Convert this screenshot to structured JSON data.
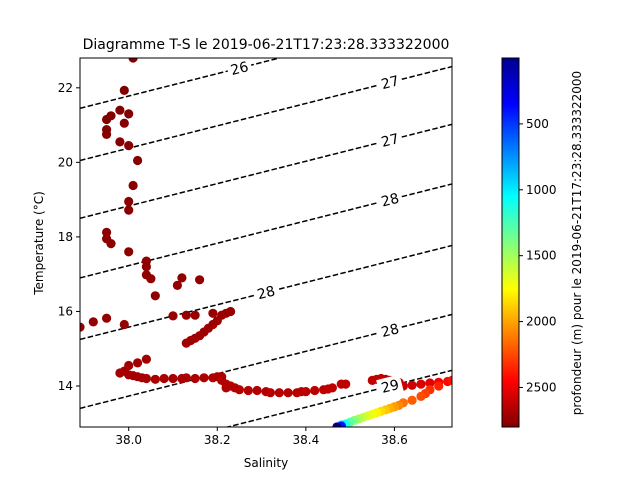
{
  "chart_data": {
    "type": "scatter",
    "title": "Diagramme T-S le 2019-06-21T17:23:28.333322000",
    "xlabel": "Salinity",
    "ylabel": "Temperature (°C)",
    "xlim": [
      37.89,
      38.73
    ],
    "ylim": [
      12.9,
      22.8
    ],
    "xticks": [
      38.0,
      38.2,
      38.4,
      38.6
    ],
    "xtick_labels": [
      "38.0",
      "38.2",
      "38.4",
      "38.6"
    ],
    "yticks": [
      14,
      16,
      18,
      20,
      22
    ],
    "ytick_labels": [
      "14",
      "16",
      "18",
      "20",
      "22"
    ],
    "grid": false,
    "colorbar": {
      "label": "profondeur (m) pour le 2019-06-21T17:23:28.333322000",
      "min": 0,
      "max": 2800,
      "reversed": true,
      "colormap": "jet",
      "ticks": [
        500,
        1000,
        1500,
        2000,
        2500
      ],
      "tick_labels": [
        "500",
        "1000",
        "1500",
        "2000",
        "2500"
      ]
    },
    "density_contours": {
      "style": "dashed",
      "color": "#000000",
      "slope_degC_per_psu": 3.0,
      "lines": [
        {
          "t_at_xmin": 21.45,
          "label": "26",
          "label_x": 38.25
        },
        {
          "t_at_xmin": 20.05,
          "label": "27",
          "label_x": 38.59
        },
        {
          "t_at_xmin": 18.5,
          "label": "27",
          "label_x": 38.59
        },
        {
          "t_at_xmin": 16.9,
          "label": "28",
          "label_x": 38.59
        },
        {
          "t_at_xmin": 15.25,
          "label": "28",
          "label_x": 38.31
        },
        {
          "t_at_xmin": 13.4,
          "label": "28",
          "label_x": 38.59
        },
        {
          "t_at_xmin": 11.9,
          "label": "29",
          "label_x": 38.59
        }
      ]
    },
    "series": [
      {
        "points": [
          [
            38.01,
            22.8,
            0
          ],
          [
            37.99,
            21.93,
            3
          ],
          [
            37.95,
            21.15,
            6
          ],
          [
            37.98,
            21.4,
            8
          ],
          [
            37.96,
            21.25,
            10
          ],
          [
            38.0,
            21.3,
            12
          ],
          [
            37.99,
            21.05,
            14
          ],
          [
            37.95,
            20.88,
            16
          ],
          [
            37.95,
            20.75,
            18
          ],
          [
            37.98,
            20.55,
            20
          ],
          [
            38.0,
            20.45,
            22
          ],
          [
            38.02,
            20.05,
            24
          ],
          [
            38.01,
            19.38,
            26
          ],
          [
            38.0,
            18.95,
            28
          ],
          [
            38.0,
            18.72,
            30
          ],
          [
            37.95,
            18.12,
            32
          ],
          [
            37.95,
            17.95,
            34
          ],
          [
            37.96,
            17.82,
            36
          ],
          [
            38.0,
            17.6,
            38
          ],
          [
            38.04,
            17.35,
            40
          ],
          [
            38.04,
            17.2,
            42
          ],
          [
            38.04,
            16.98,
            44
          ],
          [
            38.05,
            16.88,
            46
          ],
          [
            38.06,
            16.42,
            48
          ],
          [
            38.12,
            16.9,
            50
          ],
          [
            38.16,
            16.85,
            52
          ],
          [
            38.11,
            16.7,
            54
          ],
          [
            37.89,
            15.58,
            56
          ],
          [
            37.92,
            15.72,
            58
          ],
          [
            37.95,
            15.82,
            60
          ],
          [
            37.99,
            15.65,
            62
          ],
          [
            38.1,
            15.88,
            64
          ],
          [
            38.13,
            15.9,
            66
          ],
          [
            38.15,
            15.9,
            68
          ],
          [
            38.19,
            15.95,
            70
          ],
          [
            38.21,
            15.9,
            72
          ],
          [
            38.22,
            15.95,
            74
          ],
          [
            38.23,
            16.0,
            76
          ],
          [
            38.2,
            15.75,
            78
          ],
          [
            38.19,
            15.65,
            80
          ],
          [
            38.18,
            15.55,
            82
          ],
          [
            38.17,
            15.45,
            84
          ],
          [
            38.16,
            15.35,
            86
          ],
          [
            38.15,
            15.28,
            88
          ],
          [
            38.14,
            15.22,
            90
          ],
          [
            38.13,
            15.15,
            92
          ],
          [
            38.04,
            14.72,
            94
          ],
          [
            38.02,
            14.62,
            96
          ],
          [
            38.0,
            14.55,
            98
          ],
          [
            37.98,
            14.35,
            100
          ],
          [
            37.99,
            14.4,
            102
          ],
          [
            38.0,
            14.3,
            104
          ],
          [
            38.01,
            14.28,
            106
          ],
          [
            38.02,
            14.25,
            108
          ],
          [
            38.03,
            14.22,
            110
          ],
          [
            38.04,
            14.2,
            112
          ],
          [
            38.06,
            14.18,
            114
          ],
          [
            38.08,
            14.2,
            116
          ],
          [
            38.1,
            14.2,
            118
          ],
          [
            38.12,
            14.2,
            120
          ],
          [
            38.13,
            14.22,
            122
          ],
          [
            38.15,
            14.2,
            124
          ],
          [
            38.17,
            14.22,
            126
          ],
          [
            38.19,
            14.22,
            128
          ],
          [
            38.2,
            14.25,
            130
          ],
          [
            38.21,
            14.25,
            132
          ],
          [
            38.21,
            14.15,
            134
          ],
          [
            38.22,
            14.05,
            136
          ],
          [
            38.22,
            13.95,
            138
          ],
          [
            38.23,
            14.0,
            140
          ],
          [
            38.24,
            13.95,
            142
          ],
          [
            38.25,
            13.9,
            144
          ],
          [
            38.27,
            13.88,
            146
          ],
          [
            38.29,
            13.88,
            148
          ],
          [
            38.31,
            13.85,
            150
          ],
          [
            38.32,
            13.82,
            152
          ],
          [
            38.34,
            13.82,
            154
          ],
          [
            38.36,
            13.82,
            156
          ],
          [
            38.38,
            13.82,
            158
          ],
          [
            38.39,
            13.85,
            160
          ],
          [
            38.4,
            13.85,
            162
          ],
          [
            38.42,
            13.88,
            164
          ],
          [
            38.44,
            13.9,
            166
          ],
          [
            38.45,
            13.92,
            168
          ],
          [
            38.46,
            13.95,
            170
          ],
          [
            38.48,
            14.05,
            172
          ],
          [
            38.49,
            14.05,
            174
          ],
          [
            38.55,
            14.15,
            176
          ],
          [
            38.56,
            14.18,
            178
          ],
          [
            38.57,
            14.2,
            180
          ],
          [
            38.58,
            14.18,
            182
          ],
          [
            38.59,
            14.15,
            184
          ],
          [
            38.6,
            14.12,
            186
          ],
          [
            38.61,
            14.1,
            188
          ],
          [
            38.59,
            14.0,
            190
          ],
          [
            38.6,
            13.98,
            192
          ],
          [
            38.62,
            14.0,
            200
          ],
          [
            38.64,
            14.02,
            220
          ],
          [
            38.66,
            14.05,
            250
          ],
          [
            38.68,
            14.08,
            280
          ],
          [
            38.7,
            14.1,
            320
          ],
          [
            38.72,
            14.12,
            360
          ],
          [
            38.73,
            14.15,
            400
          ],
          [
            38.7,
            14.0,
            440
          ],
          [
            38.68,
            13.9,
            480
          ],
          [
            38.67,
            13.8,
            520
          ],
          [
            38.66,
            13.72,
            560
          ],
          [
            38.64,
            13.62,
            600
          ],
          [
            38.62,
            13.55,
            660
          ],
          [
            38.61,
            13.48,
            720
          ],
          [
            38.6,
            13.44,
            780
          ],
          [
            38.59,
            13.4,
            840
          ],
          [
            38.58,
            13.36,
            900
          ],
          [
            38.57,
            13.32,
            960
          ],
          [
            38.56,
            13.28,
            1020
          ],
          [
            38.55,
            13.24,
            1080
          ],
          [
            38.54,
            13.2,
            1140
          ],
          [
            38.53,
            13.16,
            1200
          ],
          [
            38.52,
            13.12,
            1280
          ],
          [
            38.51,
            13.08,
            1380
          ],
          [
            38.5,
            13.03,
            1500
          ],
          [
            38.49,
            12.98,
            1700
          ],
          [
            38.48,
            12.95,
            2000
          ],
          [
            38.48,
            12.92,
            2400
          ],
          [
            38.47,
            12.9,
            2800
          ]
        ]
      }
    ]
  }
}
